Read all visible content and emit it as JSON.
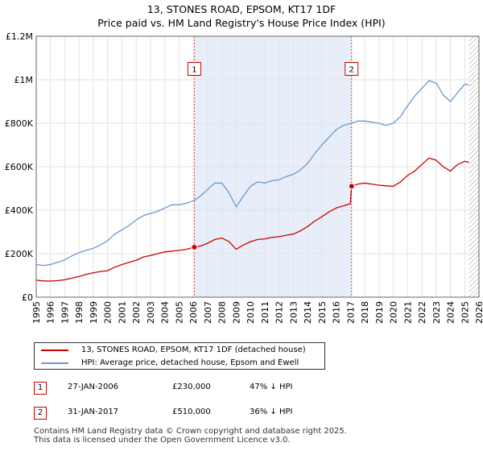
{
  "header": {
    "title_line1": "13, STONES ROAD, EPSOM, KT17 1DF",
    "title_line2": "Price paid vs. HM Land Registry's House Price Index (HPI)"
  },
  "chart_data": {
    "type": "line",
    "title": "13, STONES ROAD, EPSOM, KT17 1DF — Price paid vs. HM Land Registry's House Price Index (HPI)",
    "xlim": [
      1995,
      2026
    ],
    "ylim": [
      0,
      1200000
    ],
    "x_ticks": [
      "1995",
      "1996",
      "1997",
      "1998",
      "1999",
      "2000",
      "2001",
      "2002",
      "2003",
      "2004",
      "2005",
      "2006",
      "2007",
      "2008",
      "2009",
      "2010",
      "2011",
      "2012",
      "2013",
      "2014",
      "2015",
      "2016",
      "2017",
      "2018",
      "2019",
      "2020",
      "2021",
      "2022",
      "2023",
      "2024",
      "2025",
      "2026"
    ],
    "y_ticks": [
      {
        "value": 0,
        "label": "£0"
      },
      {
        "value": 200000,
        "label": "£200K"
      },
      {
        "value": 400000,
        "label": "£400K"
      },
      {
        "value": 600000,
        "label": "£600K"
      },
      {
        "value": 800000,
        "label": "£800K"
      },
      {
        "value": 1000000,
        "label": "£1M"
      },
      {
        "value": 1200000,
        "label": "£1.2M"
      }
    ],
    "grid": true,
    "shaded_period": {
      "from": 2006.07,
      "to": 2017.08
    },
    "hatched_future_from": 2025.3,
    "series": [
      {
        "name": "13, STONES ROAD, EPSOM, KT17 1DF (detached house)",
        "color": "#cc0000",
        "points": [
          [
            1995.0,
            78000
          ],
          [
            1995.5,
            75000
          ],
          [
            1996.0,
            74000
          ],
          [
            1996.5,
            76000
          ],
          [
            1997.0,
            80000
          ],
          [
            1997.5,
            88000
          ],
          [
            1998.0,
            95000
          ],
          [
            1998.5,
            105000
          ],
          [
            1999.0,
            112000
          ],
          [
            1999.5,
            118000
          ],
          [
            2000.0,
            122000
          ],
          [
            2000.5,
            138000
          ],
          [
            2001.0,
            150000
          ],
          [
            2001.5,
            160000
          ],
          [
            2002.0,
            170000
          ],
          [
            2002.5,
            185000
          ],
          [
            2003.0,
            192000
          ],
          [
            2003.5,
            200000
          ],
          [
            2004.0,
            208000
          ],
          [
            2004.5,
            212000
          ],
          [
            2005.0,
            215000
          ],
          [
            2005.5,
            220000
          ],
          [
            2006.07,
            230000
          ],
          [
            2006.5,
            235000
          ],
          [
            2007.0,
            248000
          ],
          [
            2007.5,
            265000
          ],
          [
            2008.0,
            272000
          ],
          [
            2008.5,
            255000
          ],
          [
            2009.0,
            220000
          ],
          [
            2009.5,
            240000
          ],
          [
            2010.0,
            255000
          ],
          [
            2010.5,
            265000
          ],
          [
            2011.0,
            268000
          ],
          [
            2011.5,
            275000
          ],
          [
            2012.0,
            278000
          ],
          [
            2012.5,
            285000
          ],
          [
            2013.0,
            290000
          ],
          [
            2013.5,
            305000
          ],
          [
            2014.0,
            325000
          ],
          [
            2014.5,
            350000
          ],
          [
            2015.0,
            370000
          ],
          [
            2015.5,
            392000
          ],
          [
            2016.0,
            410000
          ],
          [
            2016.5,
            420000
          ],
          [
            2017.0,
            430000
          ],
          [
            2017.08,
            510000
          ],
          [
            2017.5,
            520000
          ],
          [
            2018.0,
            525000
          ],
          [
            2018.5,
            520000
          ],
          [
            2019.0,
            515000
          ],
          [
            2019.5,
            512000
          ],
          [
            2020.0,
            510000
          ],
          [
            2020.5,
            530000
          ],
          [
            2021.0,
            560000
          ],
          [
            2021.5,
            580000
          ],
          [
            2022.0,
            610000
          ],
          [
            2022.5,
            640000
          ],
          [
            2023.0,
            630000
          ],
          [
            2023.5,
            600000
          ],
          [
            2024.0,
            580000
          ],
          [
            2024.5,
            610000
          ],
          [
            2025.0,
            625000
          ],
          [
            2025.3,
            620000
          ]
        ]
      },
      {
        "name": "HPI: Average price, detached house, Epsom and Ewell",
        "color": "#6a99d0",
        "points": [
          [
            1995.0,
            150000
          ],
          [
            1995.5,
            146000
          ],
          [
            1996.0,
            150000
          ],
          [
            1996.5,
            160000
          ],
          [
            1997.0,
            172000
          ],
          [
            1997.5,
            190000
          ],
          [
            1998.0,
            205000
          ],
          [
            1998.5,
            215000
          ],
          [
            1999.0,
            225000
          ],
          [
            1999.5,
            240000
          ],
          [
            2000.0,
            260000
          ],
          [
            2000.5,
            290000
          ],
          [
            2001.0,
            310000
          ],
          [
            2001.5,
            330000
          ],
          [
            2002.0,
            355000
          ],
          [
            2002.5,
            375000
          ],
          [
            2003.0,
            385000
          ],
          [
            2003.5,
            395000
          ],
          [
            2004.0,
            410000
          ],
          [
            2004.5,
            425000
          ],
          [
            2005.0,
            425000
          ],
          [
            2005.5,
            432000
          ],
          [
            2006.07,
            445000
          ],
          [
            2006.5,
            465000
          ],
          [
            2007.0,
            495000
          ],
          [
            2007.5,
            525000
          ],
          [
            2008.0,
            525000
          ],
          [
            2008.5,
            480000
          ],
          [
            2009.0,
            415000
          ],
          [
            2009.5,
            465000
          ],
          [
            2010.0,
            510000
          ],
          [
            2010.5,
            530000
          ],
          [
            2011.0,
            525000
          ],
          [
            2011.5,
            535000
          ],
          [
            2012.0,
            540000
          ],
          [
            2012.5,
            555000
          ],
          [
            2013.0,
            565000
          ],
          [
            2013.5,
            585000
          ],
          [
            2014.0,
            615000
          ],
          [
            2014.5,
            660000
          ],
          [
            2015.0,
            700000
          ],
          [
            2015.5,
            735000
          ],
          [
            2016.0,
            770000
          ],
          [
            2016.5,
            790000
          ],
          [
            2017.08,
            800000
          ],
          [
            2017.5,
            810000
          ],
          [
            2018.0,
            810000
          ],
          [
            2018.5,
            805000
          ],
          [
            2019.0,
            800000
          ],
          [
            2019.5,
            790000
          ],
          [
            2020.0,
            800000
          ],
          [
            2020.5,
            830000
          ],
          [
            2021.0,
            880000
          ],
          [
            2021.5,
            925000
          ],
          [
            2022.0,
            960000
          ],
          [
            2022.5,
            995000
          ],
          [
            2023.0,
            985000
          ],
          [
            2023.5,
            930000
          ],
          [
            2024.0,
            900000
          ],
          [
            2024.5,
            940000
          ],
          [
            2025.0,
            980000
          ],
          [
            2025.3,
            975000
          ]
        ]
      }
    ],
    "markers": [
      {
        "label": "1",
        "x": 2006.07,
        "y": 230000,
        "label_y": 1050000
      },
      {
        "label": "2",
        "x": 2017.08,
        "y": 510000,
        "label_y": 1050000
      }
    ]
  },
  "legend": {
    "items": [
      {
        "label": "13, STONES ROAD, EPSOM, KT17 1DF (detached house)",
        "color": "#cc0000"
      },
      {
        "label": "HPI: Average price, detached house, Epsom and Ewell",
        "color": "#6a99d0"
      }
    ]
  },
  "transactions": [
    {
      "id": "1",
      "date": "27-JAN-2006",
      "price": "£230,000",
      "delta": "47% ↓ HPI"
    },
    {
      "id": "2",
      "date": "31-JAN-2017",
      "price": "£510,000",
      "delta": "36% ↓ HPI"
    }
  ],
  "footer": {
    "line1": "Contains HM Land Registry data © Crown copyright and database right 2025.",
    "line2": "This data is licensed under the Open Government Licence v3.0."
  }
}
